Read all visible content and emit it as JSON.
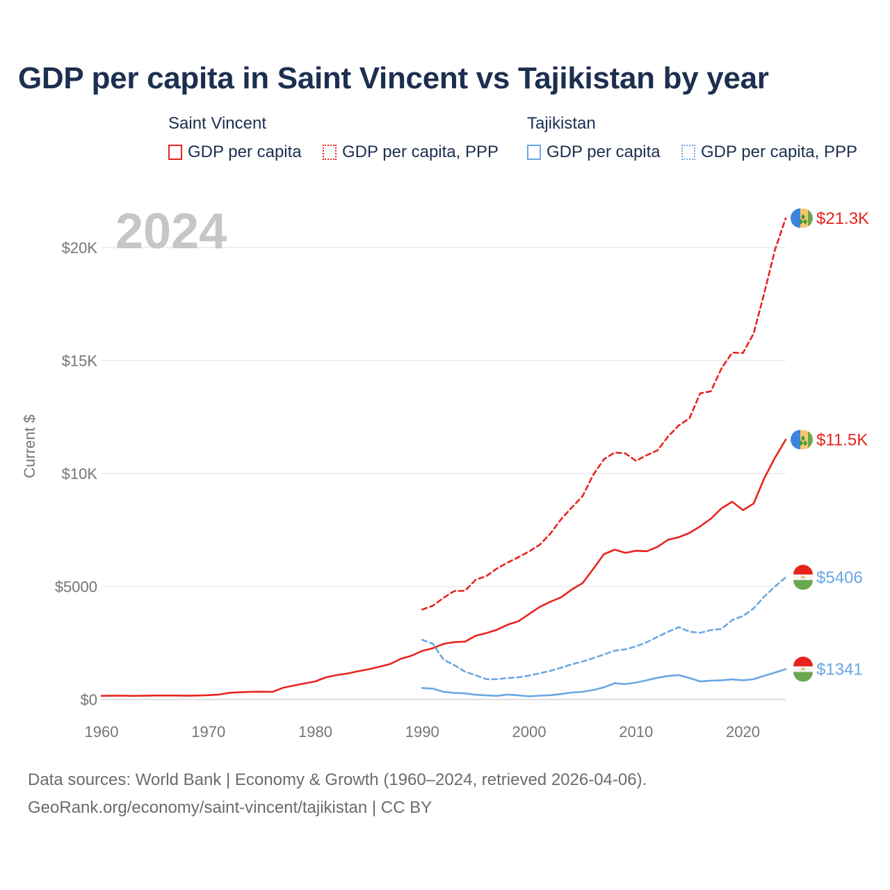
{
  "title": "GDP per capita in Saint Vincent vs Tajikistan by year",
  "year_label": "2024",
  "legend": {
    "groups": [
      {
        "name": "Saint Vincent",
        "color": "#e8231c",
        "items": [
          {
            "label": "GDP per capita",
            "style": "solid"
          },
          {
            "label": "GDP per capita, PPP",
            "style": "dotted"
          }
        ]
      },
      {
        "name": "Tajikistan",
        "color": "#6aa7e2",
        "items": [
          {
            "label": "GDP per capita",
            "style": "solid"
          },
          {
            "label": "GDP per capita, PPP",
            "style": "dotted"
          }
        ]
      }
    ]
  },
  "footer": {
    "line1": "Data sources: World Bank | Economy & Growth (1960–2024, retrieved 2026-04-06).",
    "line2": "GeoRank.org/economy/saint-vincent/tajikistan | CC BY"
  },
  "chart_data": {
    "type": "line",
    "title": "GDP per capita in Saint Vincent vs Tajikistan by year",
    "xlabel": "",
    "ylabel": "Current $",
    "xlim": [
      1960,
      2024
    ],
    "ylim": [
      0,
      22000
    ],
    "x_ticks": [
      1960,
      1970,
      1980,
      1990,
      2000,
      2010,
      2020
    ],
    "x_tick_labels": [
      "1960",
      "1970",
      "1980",
      "1990",
      "2000",
      "2010",
      "2020"
    ],
    "y_ticks": [
      0,
      5000,
      10000,
      15000,
      20000
    ],
    "y_tick_labels": [
      "$0",
      "$5000",
      "$10K",
      "$15K",
      "$20K"
    ],
    "grid": true,
    "series": [
      {
        "name": "Saint Vincent GDP per capita",
        "country": "Saint Vincent",
        "color": "#e8231c",
        "dash": "solid",
        "end_label": "$11.5K",
        "x": [
          1960,
          1961,
          1962,
          1963,
          1964,
          1965,
          1966,
          1967,
          1968,
          1969,
          1970,
          1971,
          1972,
          1973,
          1974,
          1975,
          1976,
          1977,
          1978,
          1979,
          1980,
          1981,
          1982,
          1983,
          1984,
          1985,
          1986,
          1987,
          1988,
          1989,
          1990,
          1991,
          1992,
          1993,
          1994,
          1995,
          1996,
          1997,
          1998,
          1999,
          2000,
          2001,
          2002,
          2003,
          2004,
          2005,
          2006,
          2007,
          2008,
          2009,
          2010,
          2011,
          2012,
          2013,
          2014,
          2015,
          2016,
          2017,
          2018,
          2019,
          2020,
          2021,
          2022,
          2023,
          2024
        ],
        "values": [
          160,
          165,
          170,
          160,
          165,
          175,
          175,
          175,
          165,
          175,
          190,
          220,
          300,
          320,
          340,
          345,
          335,
          520,
          620,
          710,
          800,
          980,
          1080,
          1150,
          1250,
          1340,
          1450,
          1570,
          1800,
          1940,
          2150,
          2270,
          2460,
          2540,
          2560,
          2820,
          2940,
          3090,
          3310,
          3460,
          3780,
          4100,
          4330,
          4520,
          4870,
          5150,
          5780,
          6430,
          6630,
          6490,
          6580,
          6560,
          6750,
          7070,
          7180,
          7370,
          7660,
          8000,
          8460,
          8750,
          8380,
          8670,
          9800,
          10700,
          11500
        ]
      },
      {
        "name": "Saint Vincent GDP per capita, PPP",
        "country": "Saint Vincent",
        "color": "#e8231c",
        "dash": "dotted",
        "end_label": "$21.3K",
        "x": [
          1990,
          1991,
          1992,
          1993,
          1994,
          1995,
          1996,
          1997,
          1998,
          1999,
          2000,
          2001,
          2002,
          2003,
          2004,
          2005,
          2006,
          2007,
          2008,
          2009,
          2010,
          2011,
          2012,
          2013,
          2014,
          2015,
          2016,
          2017,
          2018,
          2019,
          2020,
          2021,
          2022,
          2023,
          2024
        ],
        "values": [
          3980,
          4150,
          4500,
          4800,
          4810,
          5300,
          5460,
          5800,
          6060,
          6300,
          6550,
          6850,
          7350,
          7980,
          8500,
          9000,
          9950,
          10630,
          10930,
          10890,
          10560,
          10810,
          11020,
          11640,
          12130,
          12440,
          13550,
          13640,
          14660,
          15350,
          15330,
          16200,
          18000,
          19900,
          21300
        ]
      },
      {
        "name": "Tajikistan GDP per capita",
        "country": "Tajikistan",
        "color": "#6aa7e2",
        "dash": "solid",
        "end_label": "$1341",
        "x": [
          1990,
          1991,
          1992,
          1993,
          1994,
          1995,
          1996,
          1997,
          1998,
          1999,
          2000,
          2001,
          2002,
          2003,
          2004,
          2005,
          2006,
          2007,
          2008,
          2009,
          2010,
          2011,
          2012,
          2013,
          2014,
          2015,
          2016,
          2017,
          2018,
          2019,
          2020,
          2021,
          2022,
          2023,
          2024
        ],
        "values": [
          510,
          480,
          340,
          290,
          270,
          210,
          180,
          160,
          220,
          180,
          140,
          170,
          190,
          240,
          310,
          340,
          420,
          540,
          720,
          680,
          750,
          850,
          960,
          1040,
          1080,
          950,
          800,
          830,
          850,
          890,
          850,
          900,
          1050,
          1190,
          1341
        ]
      },
      {
        "name": "Tajikistan GDP per capita, PPP",
        "country": "Tajikistan",
        "color": "#6aa7e2",
        "dash": "dotted",
        "end_label": "$5406",
        "x": [
          1990,
          1991,
          1992,
          1993,
          1994,
          1995,
          1996,
          1997,
          1998,
          1999,
          2000,
          2001,
          2002,
          2003,
          2004,
          2005,
          2006,
          2007,
          2008,
          2009,
          2010,
          2011,
          2012,
          2013,
          2014,
          2015,
          2016,
          2017,
          2018,
          2019,
          2020,
          2021,
          2022,
          2023,
          2024
        ],
        "values": [
          2640,
          2460,
          1760,
          1520,
          1230,
          1070,
          900,
          900,
          950,
          980,
          1060,
          1160,
          1270,
          1410,
          1560,
          1680,
          1830,
          1990,
          2160,
          2220,
          2350,
          2530,
          2770,
          3000,
          3200,
          3000,
          2950,
          3070,
          3120,
          3520,
          3690,
          4030,
          4560,
          5000,
          5406
        ]
      }
    ]
  }
}
